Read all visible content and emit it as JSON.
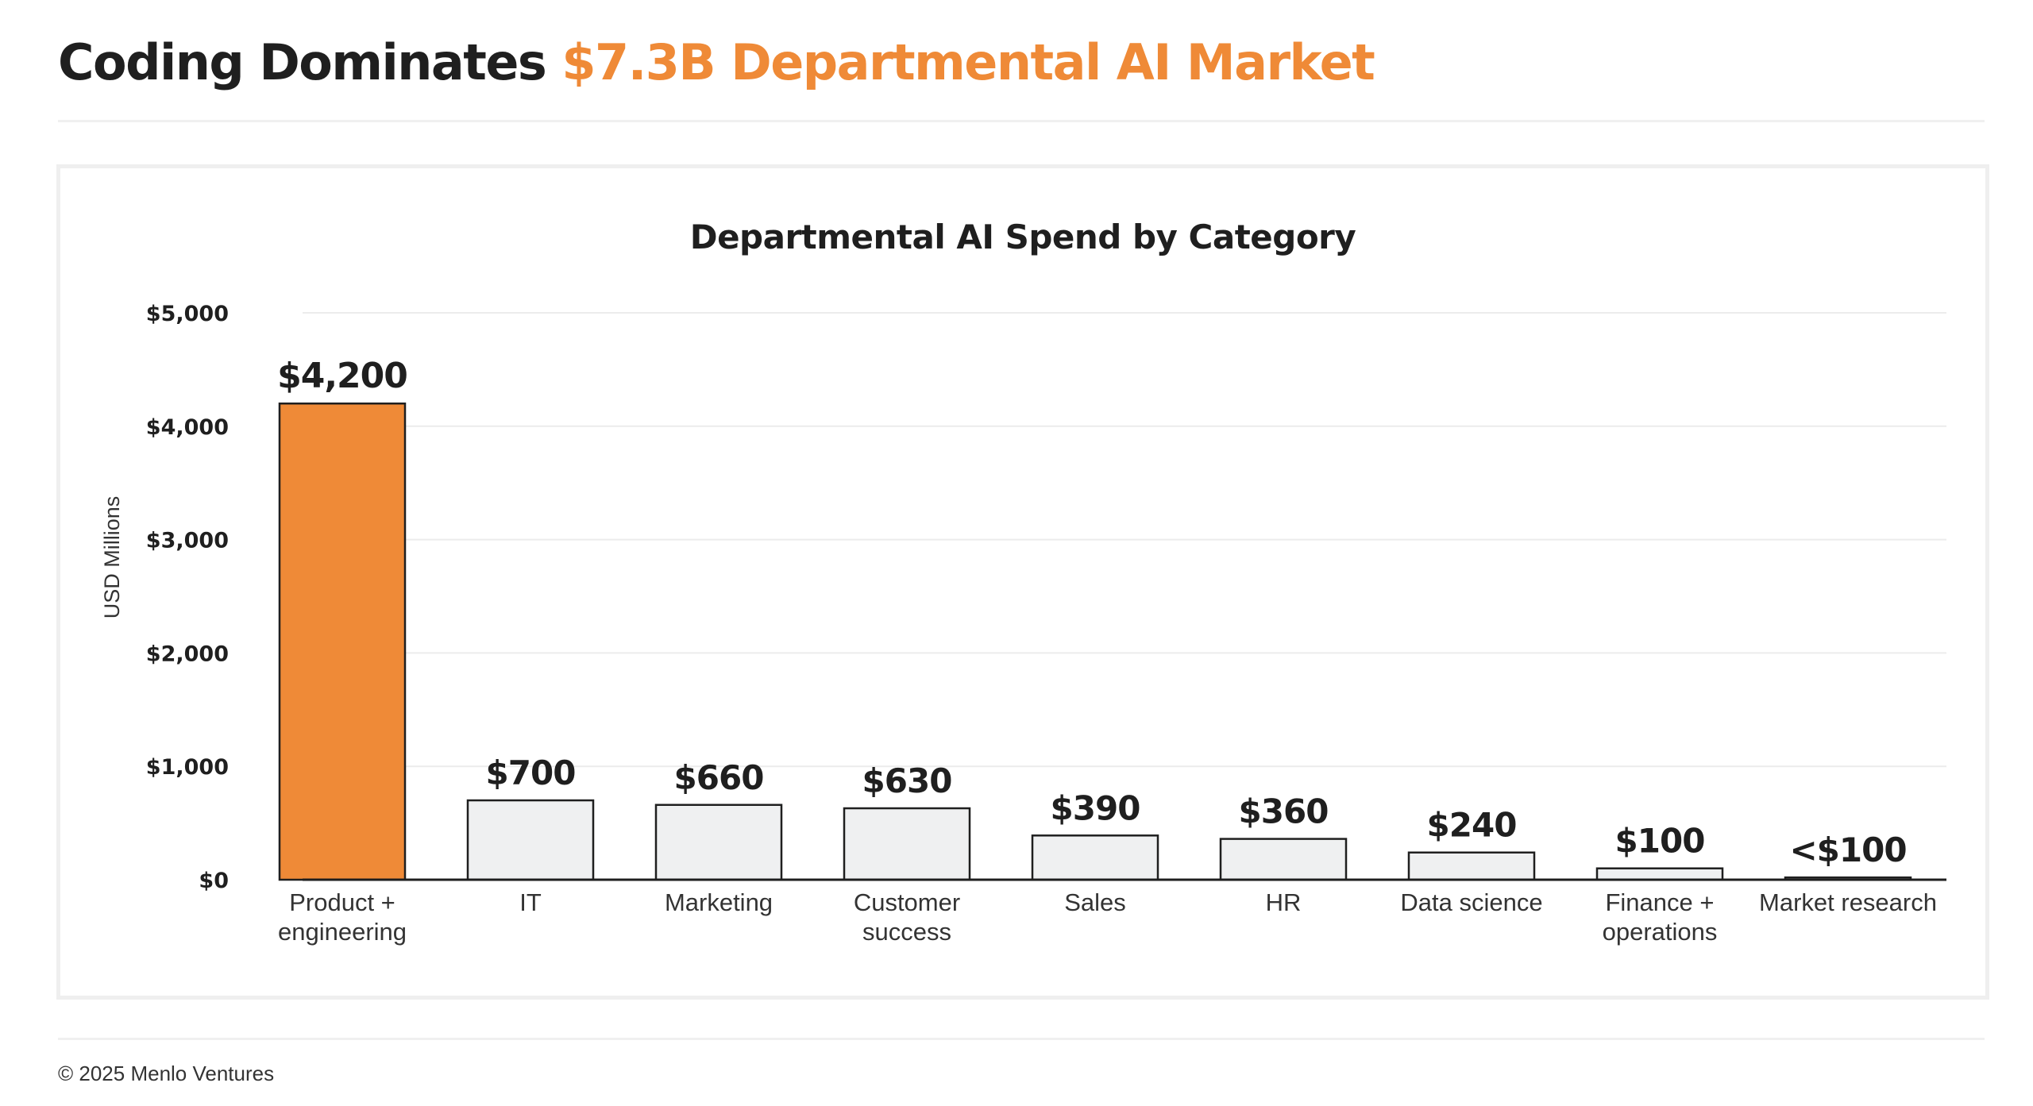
{
  "header": {
    "title_prefix": "Coding Dominates",
    "title_highlight": "$7.3B Departmental AI Market"
  },
  "colors": {
    "accent": "#ef8a37",
    "bar_default": "#eff0f1",
    "bar_stroke": "#1f1f1f",
    "gridline": "#ececec"
  },
  "chart_data": {
    "type": "bar",
    "title": "Departmental AI Spend by Category",
    "ylabel": "USD Millions",
    "xlabel": "",
    "ylim": [
      0,
      5000
    ],
    "yticks": [
      {
        "value": 0,
        "label": "$0"
      },
      {
        "value": 1000,
        "label": "$1,000"
      },
      {
        "value": 2000,
        "label": "$2,000"
      },
      {
        "value": 3000,
        "label": "$3,000"
      },
      {
        "value": 4000,
        "label": "$4,000"
      },
      {
        "value": 5000,
        "label": "$5,000"
      }
    ],
    "grid": true,
    "legend": "none",
    "categories": [
      [
        "Product +",
        "engineering"
      ],
      [
        "IT"
      ],
      [
        "Marketing"
      ],
      [
        "Customer",
        "success"
      ],
      [
        "Sales"
      ],
      [
        "HR"
      ],
      [
        "Data science"
      ],
      [
        "Finance +",
        "operations"
      ],
      [
        "Market research"
      ]
    ],
    "values": [
      4200,
      700,
      660,
      630,
      390,
      360,
      240,
      100,
      20
    ],
    "data_labels": [
      "$4,200",
      "$700",
      "$660",
      "$630",
      "$390",
      "$360",
      "$240",
      "$100",
      "<$100"
    ],
    "highlight_index": 0
  },
  "footer": {
    "copyright": "© 2025 Menlo Ventures"
  }
}
